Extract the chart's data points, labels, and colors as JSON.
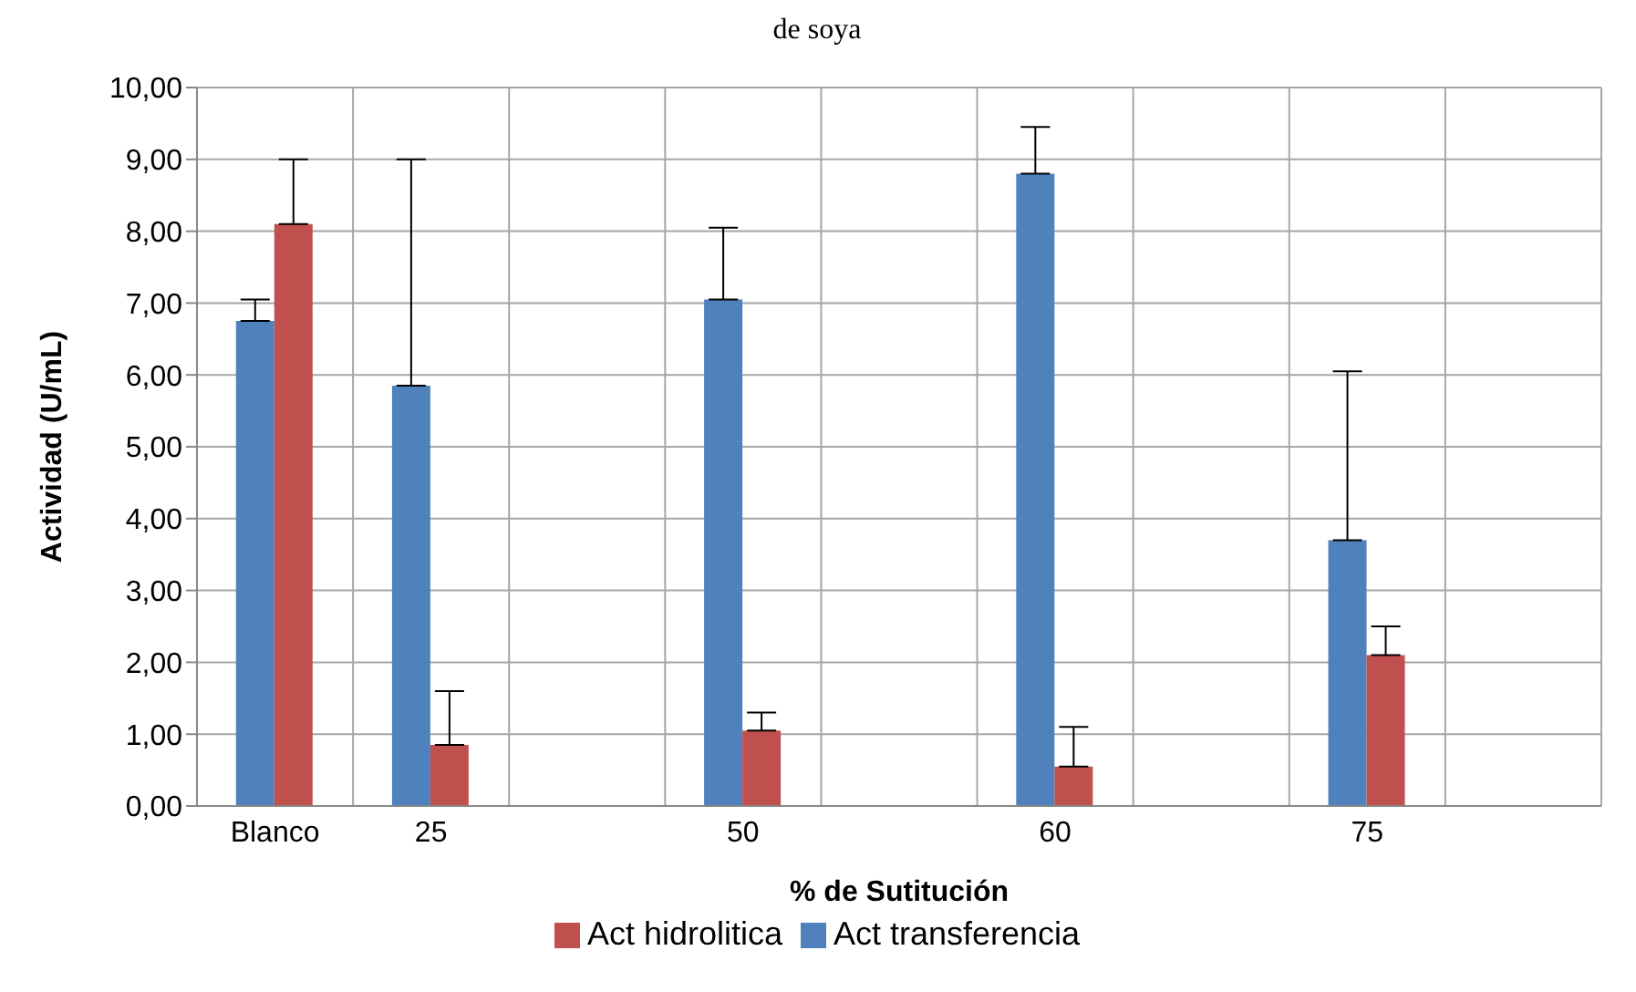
{
  "chart_data": {
    "type": "bar",
    "title": "de soya",
    "xlabel": "% de Sutitución",
    "ylabel": "Actividad (U/mL)",
    "categories": [
      "Blanco",
      "25",
      null,
      "50",
      null,
      "60",
      null,
      "75",
      null
    ],
    "series": [
      {
        "name": "Act transferencia",
        "color": "#4f81bd",
        "values": [
          6.75,
          5.85,
          null,
          7.05,
          null,
          8.8,
          null,
          3.7,
          null
        ],
        "errors": [
          [
            6.75,
            7.05
          ],
          [
            5.85,
            9.0
          ],
          null,
          [
            7.05,
            8.05
          ],
          null,
          [
            8.8,
            9.45
          ],
          null,
          [
            3.7,
            6.05
          ],
          null
        ]
      },
      {
        "name": "Act hidrolitica",
        "color": "#c0504d",
        "values": [
          8.1,
          0.85,
          null,
          1.05,
          null,
          0.55,
          null,
          2.1,
          null
        ],
        "errors": [
          [
            8.1,
            9.0
          ],
          [
            0.85,
            1.6
          ],
          null,
          [
            1.05,
            1.3
          ],
          null,
          [
            0.55,
            1.1
          ],
          null,
          [
            2.1,
            2.5
          ],
          null
        ]
      }
    ],
    "ylim": [
      0,
      10
    ],
    "yticks": [
      {
        "value": 0,
        "label": "0,00"
      },
      {
        "value": 1,
        "label": "1,00"
      },
      {
        "value": 2,
        "label": "2,00"
      },
      {
        "value": 3,
        "label": "3,00"
      },
      {
        "value": 4,
        "label": "4,00"
      },
      {
        "value": 5,
        "label": "5,00"
      },
      {
        "value": 6,
        "label": "6,00"
      },
      {
        "value": 7,
        "label": "7,00"
      },
      {
        "value": 8,
        "label": "8,00"
      },
      {
        "value": 9,
        "label": "9,00"
      },
      {
        "value": 10,
        "label": "10,00"
      }
    ],
    "grid": true,
    "legend": "bottom"
  }
}
